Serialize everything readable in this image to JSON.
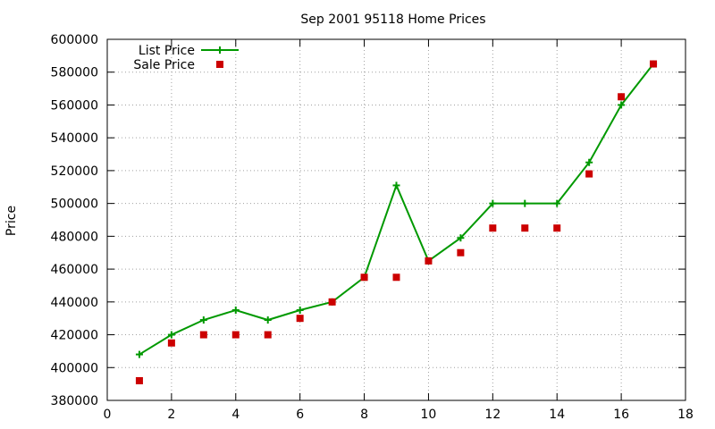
{
  "chart_data": {
    "type": "line",
    "title": "Sep 2001 95118 Home Prices",
    "xlabel": "",
    "ylabel": "Price",
    "xlim": [
      0,
      18
    ],
    "ylim": [
      380000,
      600000
    ],
    "x_ticks": [
      0,
      2,
      4,
      6,
      8,
      10,
      12,
      14,
      16,
      18
    ],
    "y_ticks": [
      380000,
      400000,
      420000,
      440000,
      460000,
      480000,
      500000,
      520000,
      540000,
      560000,
      580000,
      600000
    ],
    "grid": true,
    "legend_position": "top-left",
    "series": [
      {
        "name": "List Price",
        "style": "line+cross",
        "color": "#009900",
        "x": [
          1,
          2,
          3,
          4,
          5,
          6,
          7,
          8,
          9,
          10,
          11,
          12,
          13,
          14,
          15,
          16,
          17
        ],
        "values": [
          408000,
          420000,
          429000,
          435000,
          429000,
          435000,
          440000,
          455000,
          511000,
          465000,
          479000,
          500000,
          500000,
          500000,
          525000,
          560000,
          585000
        ]
      },
      {
        "name": "Sale Price",
        "style": "square",
        "color": "#cc0000",
        "x": [
          1,
          2,
          3,
          4,
          5,
          6,
          7,
          8,
          9,
          10,
          11,
          12,
          13,
          14,
          15,
          16,
          17
        ],
        "values": [
          392000,
          415000,
          420000,
          420000,
          420000,
          430000,
          440000,
          455000,
          455000,
          465000,
          470000,
          485000,
          485000,
          485000,
          518000,
          565000,
          585000
        ]
      }
    ]
  }
}
